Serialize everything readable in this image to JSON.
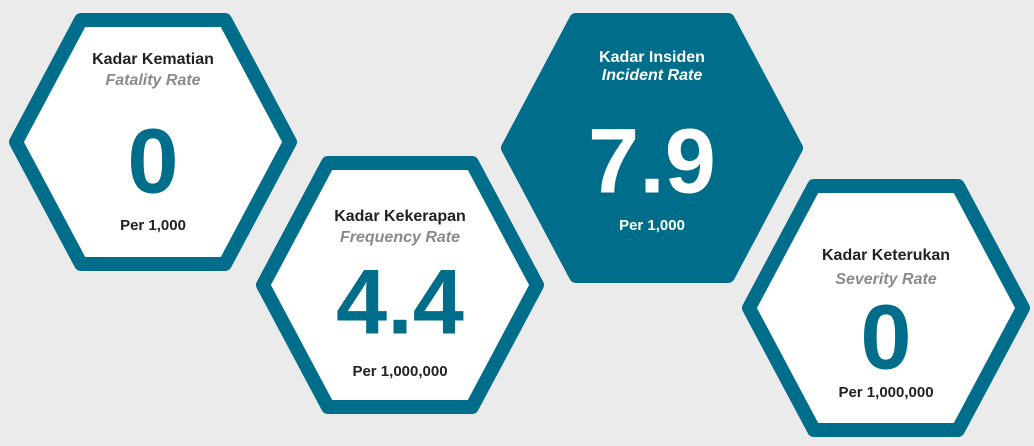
{
  "cards": [
    {
      "title": "Kadar Kematian",
      "subtitle": "Fatality Rate",
      "value": 0,
      "unit": "Per 1,000"
    },
    {
      "title": "Kadar Kekerapan",
      "subtitle": "Frequency Rate",
      "value": 4.4,
      "unit": "Per 1,000,000"
    },
    {
      "title": "Kadar Insiden",
      "subtitle": "Incident Rate",
      "value": 7.9,
      "unit": "Per 1,000"
    },
    {
      "title": "Kadar Keterukan",
      "subtitle": "Severity Rate",
      "value": 0,
      "unit": "Per 1,000,000"
    }
  ]
}
